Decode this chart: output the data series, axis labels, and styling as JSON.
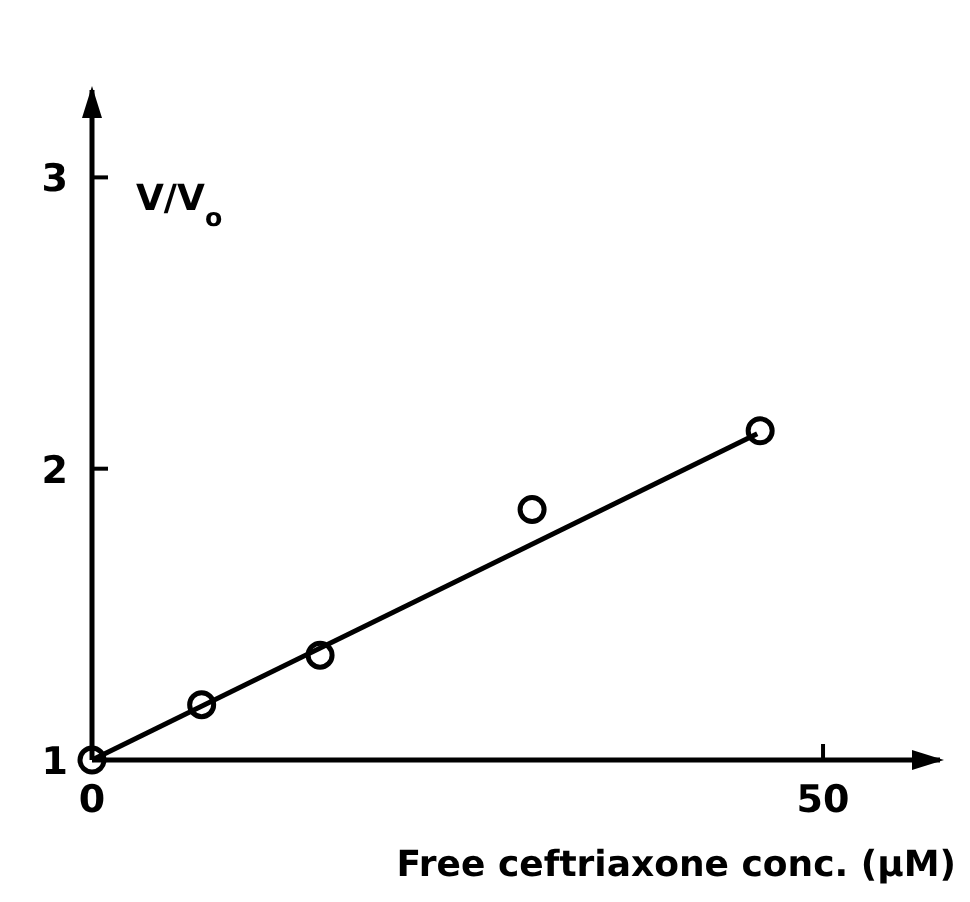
{
  "chart_data": {
    "type": "scatter",
    "xlabel": "Free ceftriaxone conc. (µM)",
    "ylabel": "V/V$_{o}$",
    "xlim": [
      0,
      58
    ],
    "ylim": [
      1,
      3.3
    ],
    "xticks": [
      0,
      50
    ],
    "yticks": [
      1,
      2,
      3
    ],
    "grid": false,
    "marker": "circle",
    "series": [
      {
        "color": "#000000",
        "x": [
          0,
          7.5,
          15.6,
          30.1,
          45.7
        ],
        "values": [
          1,
          1.19,
          1.36,
          1.86,
          2.13
        ]
      },
      {
        "type": "line",
        "marker": "none",
        "color": "#000000",
        "line_style": "solid",
        "x": [
          0,
          45.5
        ],
        "values": [
          1,
          2.12
        ]
      }
    ]
  }
}
